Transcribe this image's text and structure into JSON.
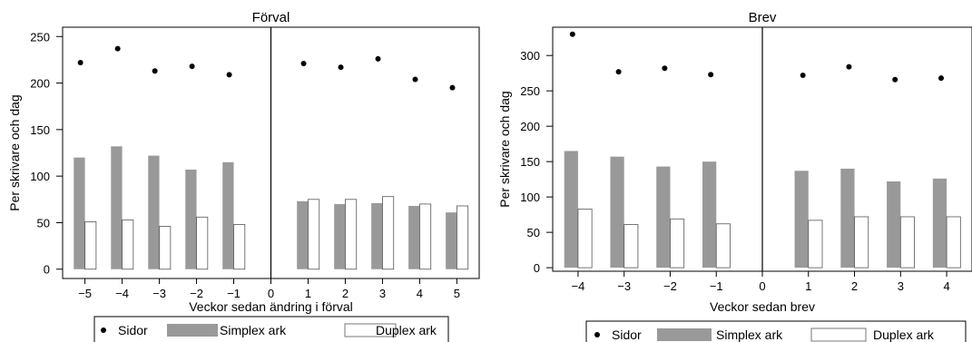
{
  "chart_data": [
    {
      "type": "bar",
      "title": "Förval",
      "xlabel": "Veckor sedan ändring i förval",
      "ylabel": "Per skrivare och dag",
      "ylim": [
        -10,
        260
      ],
      "yticks": [
        0,
        50,
        100,
        150,
        200,
        250
      ],
      "xticks": [
        -5,
        -4,
        -3,
        -2,
        -1,
        0,
        1,
        2,
        3,
        4,
        5
      ],
      "x": [
        -5,
        -4,
        -3,
        -2,
        -1,
        1,
        2,
        3,
        4,
        5
      ],
      "series": [
        {
          "name": "Sidor",
          "kind": "points",
          "values": [
            222,
            237,
            213,
            218,
            209,
            221,
            217,
            226,
            204,
            195
          ]
        },
        {
          "name": "Simplex ark",
          "kind": "bar",
          "color": "#999999",
          "values": [
            120,
            132,
            122,
            107,
            115,
            73,
            70,
            71,
            68,
            61
          ]
        },
        {
          "name": "Duplex ark",
          "kind": "bar",
          "color": "#ffffff",
          "values": [
            51,
            53,
            46,
            56,
            48,
            75,
            75,
            78,
            70,
            68
          ]
        }
      ],
      "vline": 0,
      "legend": [
        "Sidor",
        "Simplex ark",
        "Duplex ark"
      ]
    },
    {
      "type": "bar",
      "title": "Brev",
      "xlabel": "Veckor sedan brev",
      "ylabel": "Per skrivare och dag",
      "ylim": [
        -5,
        340
      ],
      "yticks": [
        0,
        50,
        100,
        150,
        200,
        250,
        300
      ],
      "xticks": [
        -4,
        -3,
        -2,
        -1,
        0,
        1,
        2,
        3,
        4
      ],
      "x": [
        -4,
        -3,
        -2,
        -1,
        1,
        2,
        3,
        4
      ],
      "series": [
        {
          "name": "Sidor",
          "kind": "points",
          "values": [
            330,
            277,
            282,
            273,
            272,
            284,
            266,
            268
          ]
        },
        {
          "name": "Simplex ark",
          "kind": "bar",
          "color": "#999999",
          "values": [
            165,
            157,
            143,
            150,
            137,
            140,
            122,
            126
          ]
        },
        {
          "name": "Duplex ark",
          "kind": "bar",
          "color": "#ffffff",
          "values": [
            83,
            61,
            69,
            62,
            67,
            72,
            72,
            72
          ]
        }
      ],
      "vline": 0,
      "legend": [
        "Sidor",
        "Simplex ark",
        "Duplex ark"
      ]
    }
  ]
}
